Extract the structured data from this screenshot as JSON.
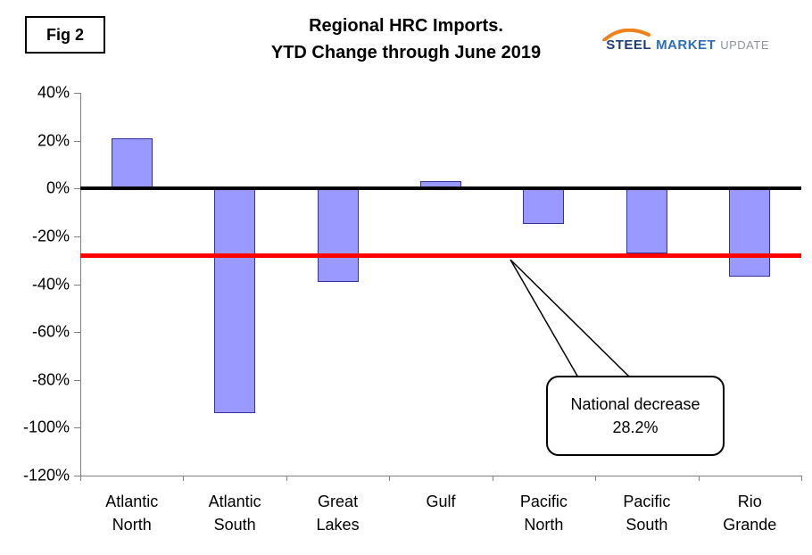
{
  "fig_label": "Fig 2",
  "title_line1": "Regional HRC Imports.",
  "title_line2": "YTD Change through June 2019",
  "logo": {
    "steel": "STEEL",
    "market": "MARKET",
    "update": "UPDATE",
    "steel_color": "#1d3d7c",
    "market_color": "#2f6eb5",
    "update_color": "#8f9499",
    "swoosh_color": "#f08019"
  },
  "callout": {
    "line1": "National decrease",
    "line2": "28.2%"
  },
  "chart_data": {
    "type": "bar",
    "title": "Regional HRC Imports. YTD Change through June 2019",
    "categories": [
      [
        "Atlantic",
        "North"
      ],
      [
        "Atlantic",
        "South"
      ],
      [
        "Great",
        "Lakes"
      ],
      [
        "Gulf"
      ],
      [
        "Pacific",
        "North"
      ],
      [
        "Pacific",
        "South"
      ],
      [
        "Rio",
        "Grande"
      ]
    ],
    "values": [
      21,
      -94,
      -39,
      3,
      -15,
      -27,
      -37
    ],
    "ylabel": "",
    "xlabel": "",
    "ylim": [
      -120,
      40
    ],
    "ytick_step": 20,
    "ytick_suffix": "%",
    "grid": false,
    "bar_fill": "#9999ff",
    "bar_border": "#333399",
    "reference_lines": [
      {
        "value": 0,
        "color": "#000000",
        "note": "zero baseline"
      },
      {
        "value": -28.2,
        "color": "#ff0000",
        "note": "National decrease 28.2%"
      }
    ]
  }
}
